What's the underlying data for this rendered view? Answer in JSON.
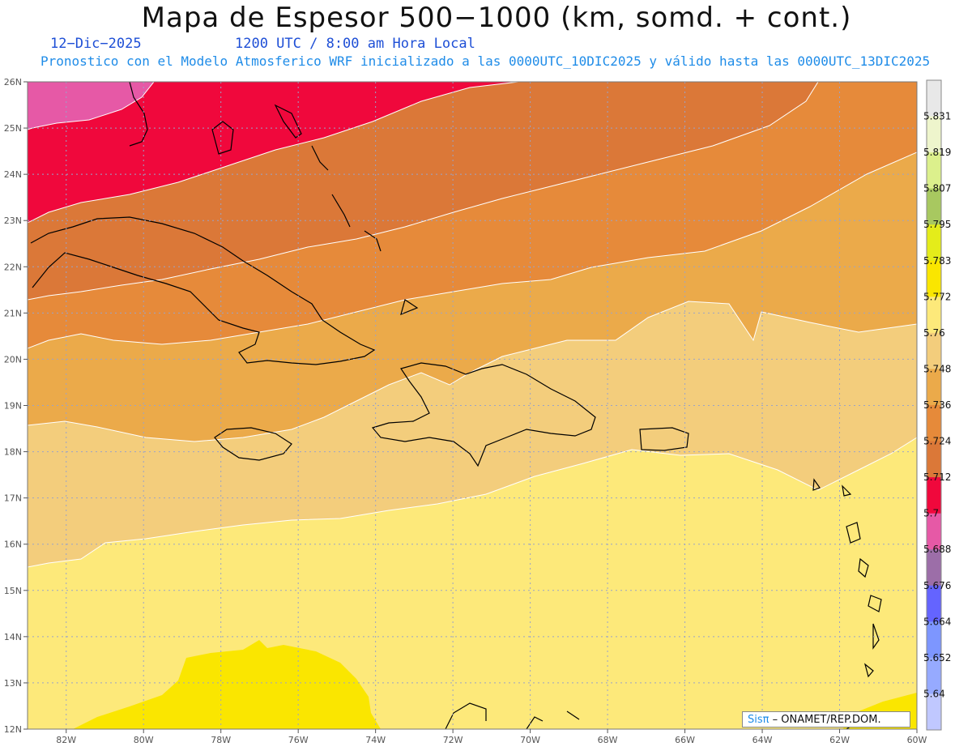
{
  "header": {
    "title": "Mapa de Espesor 500−1000 (km, somd. + cont.)",
    "date": "12−Dic−2025",
    "time": "1200 UTC / 8:00 am Hora Local",
    "subtitle": "Pronostico con el Modelo Atmosferico WRF inicializado a las 0000UTC_10DIC2025 y válido hasta las  0000UTC_13DIC2025"
  },
  "axes": {
    "lat_labels": [
      "26N",
      "25N",
      "24N",
      "23N",
      "22N",
      "21N",
      "20N",
      "19N",
      "18N",
      "17N",
      "16N",
      "15N",
      "14N",
      "13N",
      "12N"
    ],
    "lon_labels": [
      "82W",
      "80W",
      "78W",
      "76W",
      "74W",
      "72W",
      "70W",
      "68W",
      "66W",
      "64W",
      "62W",
      "60W"
    ],
    "lat_range": [
      12,
      26
    ],
    "lon_range": [
      -83,
      -60
    ]
  },
  "colorbar": {
    "labels": [
      "5.831",
      "5.819",
      "5.807",
      "5.795",
      "5.783",
      "5.772",
      "5.76",
      "5.748",
      "5.736",
      "5.724",
      "5.712",
      "5.7",
      "5.688",
      "5.676",
      "5.664",
      "5.652",
      "5.64"
    ],
    "colors": [
      "#e8e8e8",
      "#eef5cc",
      "#dcf08c",
      "#a8c860",
      "#e4ec1a",
      "#fae600",
      "#fde97a",
      "#f3cd7c",
      "#ebaa4a",
      "#e68a3a",
      "#db7838",
      "#f0083c",
      "#e659a6",
      "#9c6ea8",
      "#6464ff",
      "#7d96ff",
      "#96aaff",
      "#c0c8ff"
    ]
  },
  "credit": {
    "sis": "Sisπ",
    "rest": " – ONAMET/REP.DOM."
  }
}
